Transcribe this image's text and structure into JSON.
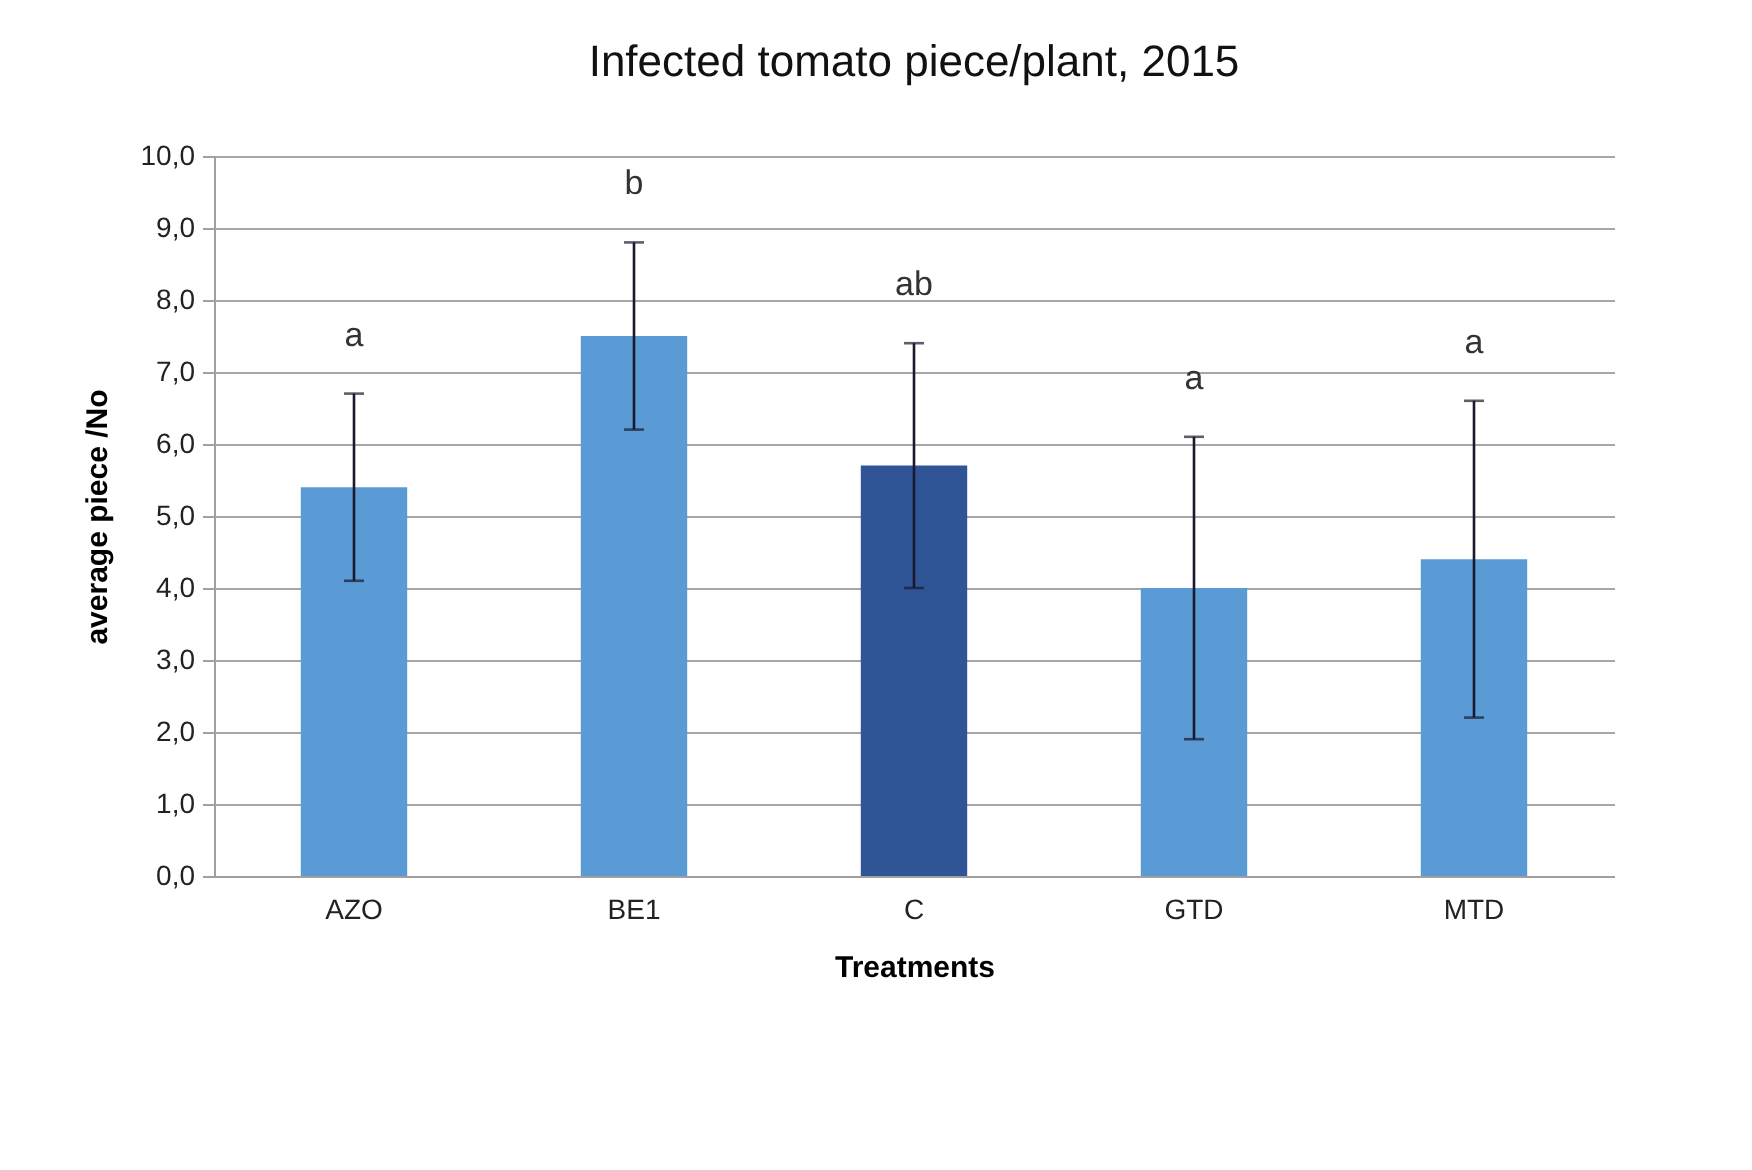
{
  "chart_data": {
    "type": "bar",
    "title": "Infected tomato piece/plant, 2015",
    "xlabel": "Treatments",
    "ylabel": "average piece /No",
    "categories": [
      "AZO",
      "BE1",
      "C",
      "GTD",
      "MTD"
    ],
    "values": [
      5.4,
      7.5,
      5.7,
      4.0,
      4.4
    ],
    "colors": [
      "#5b9bd5",
      "#5b9bd5",
      "#2f5597",
      "#5b9bd5",
      "#5b9bd5"
    ],
    "errors": [
      1.3,
      1.3,
      1.7,
      2.1,
      2.2
    ],
    "ylim": [
      0,
      10
    ],
    "yticks": [
      {
        "value": 0,
        "label": "0,0"
      },
      {
        "value": 1,
        "label": "1,0"
      },
      {
        "value": 2,
        "label": "2,0"
      },
      {
        "value": 3,
        "label": "3,0"
      },
      {
        "value": 4,
        "label": "4,0"
      },
      {
        "value": 5,
        "label": "5,0"
      },
      {
        "value": 6,
        "label": "6,0"
      },
      {
        "value": 7,
        "label": "7,0"
      },
      {
        "value": 8,
        "label": "8,0"
      },
      {
        "value": 9,
        "label": "9,0"
      },
      {
        "value": 10,
        "label": "10,0"
      }
    ],
    "grid": "y",
    "legend": false,
    "annotations": [
      "a",
      "b",
      "ab",
      "a",
      "a"
    ]
  }
}
